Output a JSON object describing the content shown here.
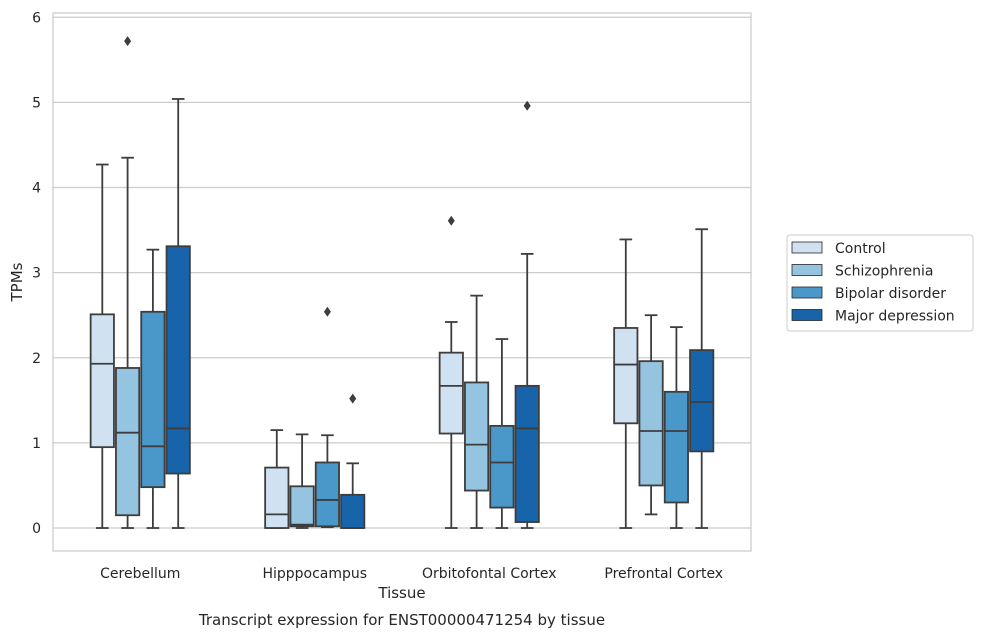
{
  "chart_data": {
    "type": "box",
    "xlabel": "Tissue",
    "ylabel": "TPMs",
    "caption": "Transcript expression for ENST00000471254 by tissue",
    "ylim": [
      -0.27,
      6.05
    ],
    "yticks": [
      0,
      1,
      2,
      3,
      4,
      5,
      6
    ],
    "grid": true,
    "legend_position": "right",
    "categories": [
      "Cerebellum",
      "Hipppocampus",
      "Orbitofontal Cortex",
      "Prefrontal Cortex"
    ],
    "series": [
      {
        "name": "Control",
        "color": "#d0e1f2",
        "boxes": [
          {
            "whisker_low": 0.0,
            "q1": 0.95,
            "median": 1.93,
            "q3": 2.51,
            "whisker_high": 4.27,
            "outliers": []
          },
          {
            "whisker_low": 0.0,
            "q1": 0.0,
            "median": 0.16,
            "q3": 0.71,
            "whisker_high": 1.15,
            "outliers": []
          },
          {
            "whisker_low": 0.0,
            "q1": 1.11,
            "median": 1.67,
            "q3": 2.06,
            "whisker_high": 2.42,
            "outliers": [
              3.61
            ]
          },
          {
            "whisker_low": 0.0,
            "q1": 1.23,
            "median": 1.92,
            "q3": 2.35,
            "whisker_high": 3.39,
            "outliers": []
          }
        ]
      },
      {
        "name": "Schizophrenia",
        "color": "#94c4df",
        "boxes": [
          {
            "whisker_low": 0.0,
            "q1": 0.15,
            "median": 1.12,
            "q3": 1.88,
            "whisker_high": 4.35,
            "outliers": [
              5.72
            ]
          },
          {
            "whisker_low": 0.0,
            "q1": 0.02,
            "median": 0.04,
            "q3": 0.49,
            "whisker_high": 1.1,
            "outliers": []
          },
          {
            "whisker_low": 0.0,
            "q1": 0.44,
            "median": 0.98,
            "q3": 1.71,
            "whisker_high": 2.73,
            "outliers": []
          },
          {
            "whisker_low": 0.16,
            "q1": 0.5,
            "median": 1.14,
            "q3": 1.96,
            "whisker_high": 2.5,
            "outliers": []
          }
        ]
      },
      {
        "name": "Bipolar disorder",
        "color": "#4a98c9",
        "boxes": [
          {
            "whisker_low": 0.0,
            "q1": 0.48,
            "median": 0.96,
            "q3": 2.54,
            "whisker_high": 3.27,
            "outliers": []
          },
          {
            "whisker_low": 0.01,
            "q1": 0.02,
            "median": 0.33,
            "q3": 0.77,
            "whisker_high": 1.09,
            "outliers": [
              2.54
            ]
          },
          {
            "whisker_low": 0.0,
            "q1": 0.24,
            "median": 0.77,
            "q3": 1.2,
            "whisker_high": 2.22,
            "outliers": []
          },
          {
            "whisker_low": 0.0,
            "q1": 0.3,
            "median": 1.14,
            "q3": 1.6,
            "whisker_high": 2.36,
            "outliers": []
          }
        ]
      },
      {
        "name": "Major depression",
        "color": "#1764ab",
        "boxes": [
          {
            "whisker_low": 0.0,
            "q1": 0.64,
            "median": 1.17,
            "q3": 3.31,
            "whisker_high": 5.04,
            "outliers": []
          },
          {
            "whisker_low": 0.0,
            "q1": 0.0,
            "median": 0.0,
            "q3": 0.39,
            "whisker_high": 0.76,
            "outliers": [
              1.52
            ]
          },
          {
            "whisker_low": 0.0,
            "q1": 0.07,
            "median": 1.17,
            "q3": 1.67,
            "whisker_high": 3.22,
            "outliers": [
              4.96
            ]
          },
          {
            "whisker_low": 0.0,
            "q1": 0.9,
            "median": 1.48,
            "q3": 2.09,
            "whisker_high": 3.51,
            "outliers": []
          }
        ]
      }
    ]
  }
}
